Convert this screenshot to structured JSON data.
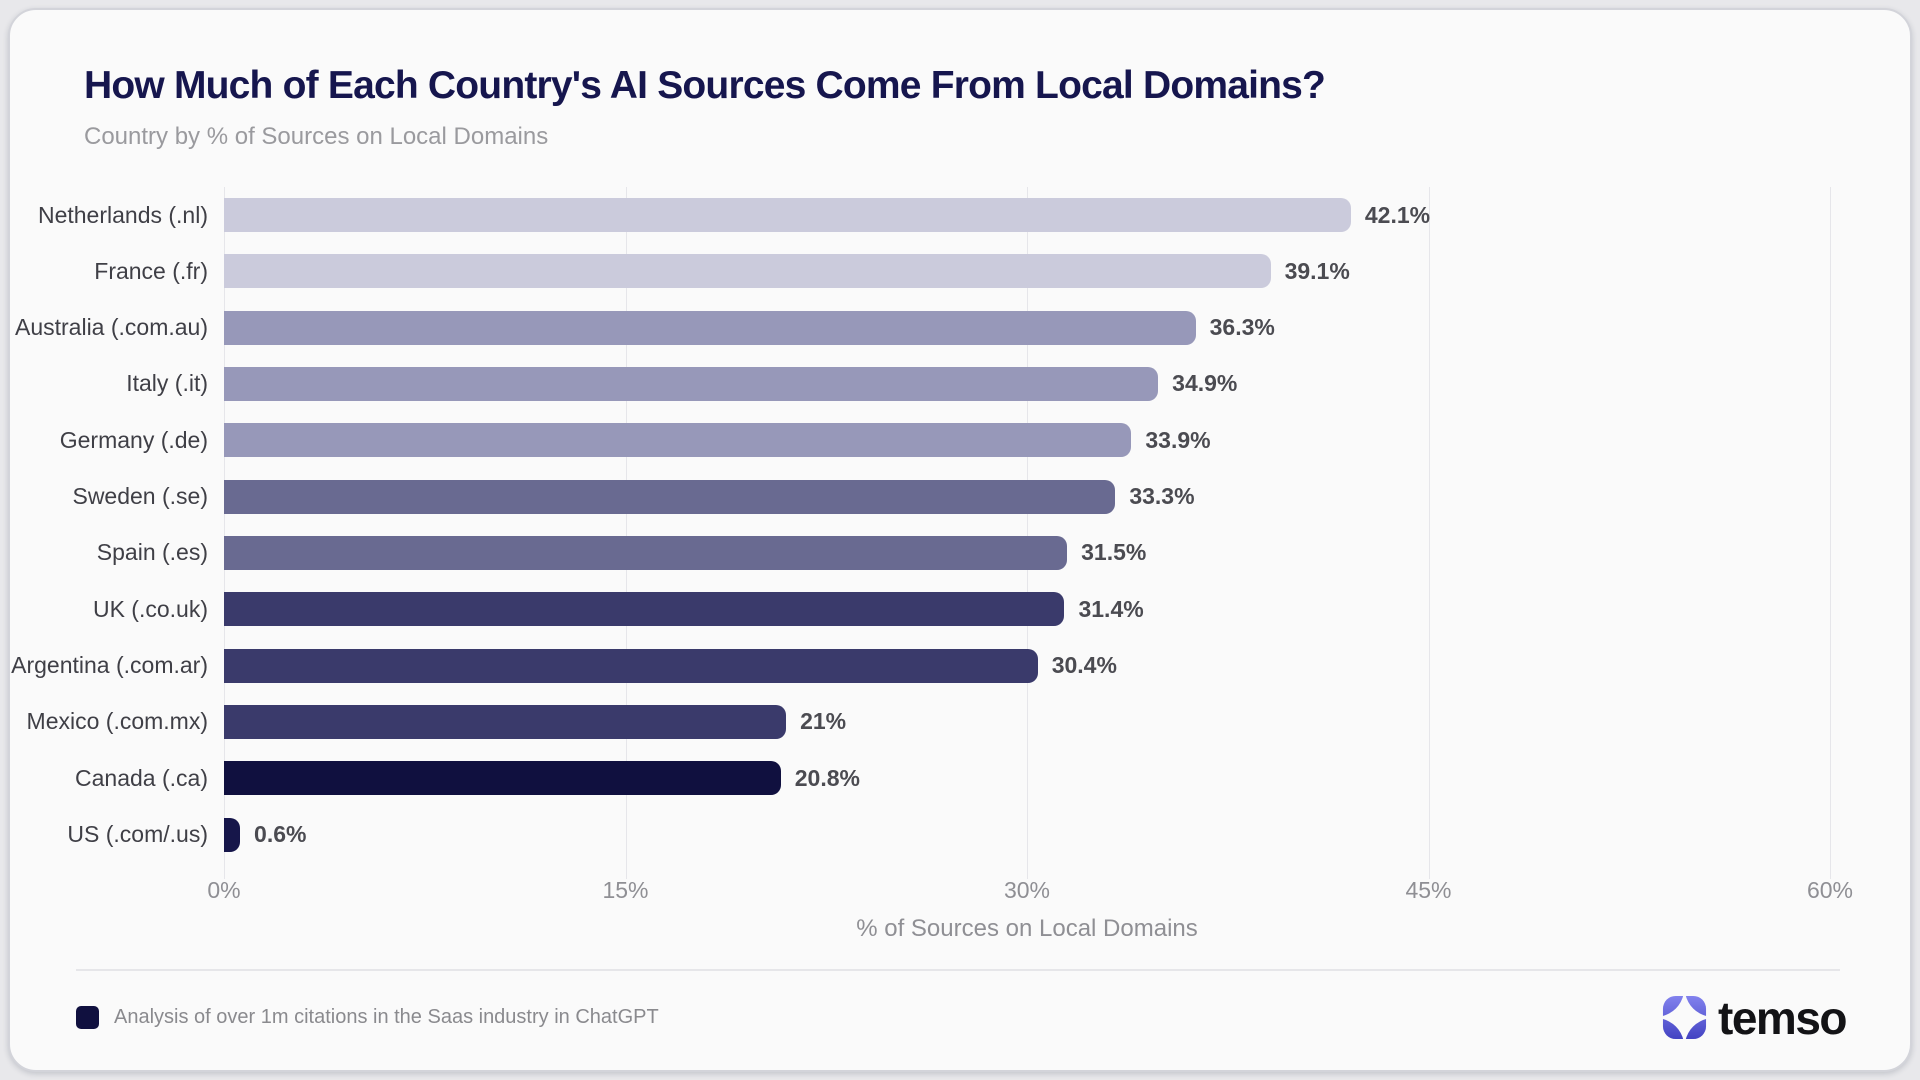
{
  "header": {
    "title": "How Much of Each Country's AI Sources Come From Local Domains?",
    "subtitle": "Country by % of Sources on Local Domains"
  },
  "chart_data": {
    "type": "bar",
    "orientation": "horizontal",
    "title": "How Much of Each Country's AI Sources Come From Local Domains?",
    "subtitle": "Country by % of Sources on Local Domains",
    "categories": [
      "Netherlands (.nl)",
      "France (.fr)",
      "Australia (.com.au)",
      "Italy (.it)",
      "Germany (.de)",
      "Sweden (.se)",
      "Spain (.es)",
      "UK (.co.uk)",
      "Argentina (.com.ar)",
      "Mexico (.com.mx)",
      "Canada (.ca)",
      "US (.com/.us)"
    ],
    "values": [
      42.1,
      39.1,
      36.3,
      34.9,
      33.9,
      33.3,
      31.5,
      31.4,
      30.4,
      21,
      20.8,
      0.6
    ],
    "value_labels": [
      "42.1%",
      "39.1%",
      "36.3%",
      "34.9%",
      "33.9%",
      "33.3%",
      "31.5%",
      "31.4%",
      "30.4%",
      "21%",
      "20.8%",
      "0.6%"
    ],
    "bar_colors": [
      "#cbcbdc",
      "#cbcbdc",
      "#9798b9",
      "#9798b9",
      "#9798b9",
      "#696a91",
      "#696a91",
      "#3a3a6b",
      "#3a3a6b",
      "#3a3a6b",
      "#10103f",
      "#16164a"
    ],
    "xlabel": "% of Sources on Local Domains",
    "xlim": [
      0,
      60
    ],
    "x_ticks": [
      {
        "value": 0,
        "label": "0%"
      },
      {
        "value": 15,
        "label": "15%"
      },
      {
        "value": 30,
        "label": "30%"
      },
      {
        "value": 45,
        "label": "45%"
      },
      {
        "value": 60,
        "label": "60%"
      }
    ],
    "grid": "vertical",
    "legend_position": "bottom-left"
  },
  "footer": {
    "legend_label": "Analysis of over 1m citations in the Saas industry in ChatGPT",
    "legend_swatch_color": "#10103f",
    "logo_text": "temso",
    "logo_icon_color_top": "#8282ee",
    "logo_icon_color_bottom": "#4343c2"
  }
}
